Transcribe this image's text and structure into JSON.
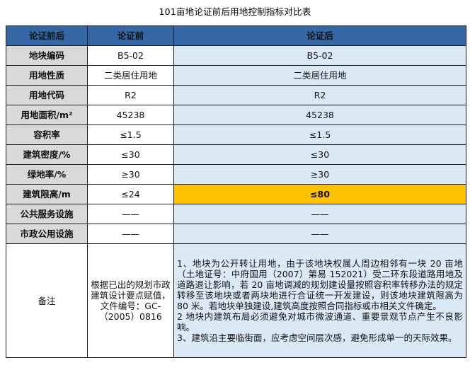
{
  "title": "101亩地论证前后用地控制指标对比表",
  "header": {
    "col_label": "论证前后",
    "col_before": "论证前",
    "col_after": "论证后"
  },
  "rows": [
    {
      "label": "地块编码",
      "before": "B5-02",
      "after": "B5-02"
    },
    {
      "label": "用地性质",
      "before": "二类居住用地",
      "after": "二类居住用地"
    },
    {
      "label": "用地代码",
      "before": "R2",
      "after": "R2"
    },
    {
      "label": "用地面积/m²",
      "before": "45238",
      "after": "45238"
    },
    {
      "label": "容积率",
      "before": "≤1.5",
      "after": "≤1.5"
    },
    {
      "label": "建筑密度/%",
      "before": "≤30",
      "after": "≤30"
    },
    {
      "label": "绿地率/%",
      "before": "≥30",
      "after": "≥30"
    },
    {
      "label": "建筑限高/m",
      "before": "≤24",
      "after": "≤80"
    },
    {
      "label": "公共服务设施",
      "before": "——",
      "after": "——"
    },
    {
      "label": "市政公用设施",
      "before": "——",
      "after": "——"
    }
  ],
  "note": {
    "label": "备注",
    "before": "根据已出的规划市政建筑设计要点赋值，文件编号：GC-（2005）0816",
    "after": [
      "1、地块为公开转让用地，由于该地块权属人周边相邻有一块 20 亩地（土地证号：中府国用（2007）第易 152021）受二环东段道路用地及道路退让影响，若 20 亩地调减的规划建设量按照容积率转移办法的规定转移至该地块或者两块地进行合证统一开发建设，则该地块建筑限高为 80 米。若地块单独建设,建筑高度按照合同指标或市相关文件确定。",
      "2 地块内建筑布局必须避免对城市微波通道、重要景观节点产生不良影响。",
      "3、建筑沿主要临街面，应考虑空间层次感，避免形成单一的天际效果。"
    ]
  },
  "colors": {
    "header_bg": "#3566a6",
    "label_bg": "#d9d9d9",
    "after_bg": "#dbe9f7",
    "highlight_bg": "#ffc000"
  }
}
